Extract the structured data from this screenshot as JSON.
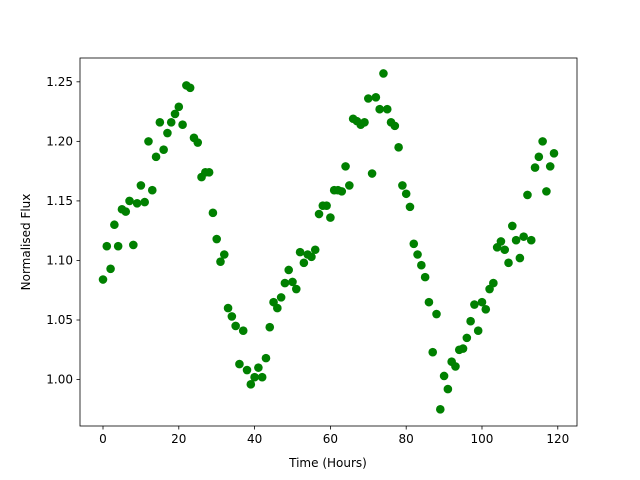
{
  "chart_data": {
    "type": "scatter",
    "x_label": "Time (Hours)",
    "y_label": "Normalised Flux",
    "color": "#008000",
    "x": [
      0,
      1,
      2,
      3,
      4,
      5,
      6,
      7,
      8,
      9,
      10,
      11,
      12,
      13,
      14,
      15,
      16,
      17,
      18,
      19,
      20,
      21,
      22,
      23,
      24,
      25,
      26,
      27,
      28,
      29,
      30,
      31,
      32,
      33,
      34,
      35,
      36,
      37,
      38,
      39,
      40,
      41,
      42,
      43,
      44,
      45,
      46,
      47,
      48,
      49,
      50,
      51,
      52,
      53,
      54,
      55,
      56,
      57,
      58,
      59,
      60,
      61,
      62,
      63,
      64,
      65,
      66,
      67,
      68,
      69,
      70,
      71,
      72,
      73,
      74,
      75,
      76,
      77,
      78,
      79,
      80,
      81,
      82,
      83,
      84,
      85,
      86,
      87,
      88,
      89,
      90,
      91,
      92,
      93,
      94,
      95,
      96,
      97,
      98,
      99,
      100,
      101,
      102,
      103,
      104,
      105,
      106,
      107,
      108,
      109,
      110,
      111,
      112,
      113,
      114,
      115,
      116,
      117,
      118,
      119
    ],
    "values": [
      1.084,
      1.112,
      1.093,
      1.13,
      1.112,
      1.143,
      1.141,
      1.15,
      1.113,
      1.148,
      1.163,
      1.149,
      1.2,
      1.159,
      1.187,
      1.216,
      1.193,
      1.207,
      1.216,
      1.223,
      1.229,
      1.214,
      1.247,
      1.245,
      1.203,
      1.199,
      1.17,
      1.174,
      1.174,
      1.14,
      1.118,
      1.099,
      1.105,
      1.06,
      1.053,
      1.045,
      1.013,
      1.041,
      1.008,
      0.996,
      1.002,
      1.01,
      1.002,
      1.018,
      1.044,
      1.065,
      1.06,
      1.069,
      1.081,
      1.092,
      1.082,
      1.076,
      1.107,
      1.098,
      1.105,
      1.103,
      1.109,
      1.139,
      1.146,
      1.146,
      1.136,
      1.159,
      1.159,
      1.158,
      1.179,
      1.163,
      1.219,
      1.217,
      1.214,
      1.216,
      1.236,
      1.173,
      1.237,
      1.227,
      1.257,
      1.227,
      1.216,
      1.213,
      1.195,
      1.163,
      1.156,
      1.145,
      1.114,
      1.105,
      1.096,
      1.086,
      1.065,
      1.023,
      1.055,
      0.975,
      1.003,
      0.992,
      1.015,
      1.011,
      1.025,
      1.026,
      1.035,
      1.049,
      1.063,
      1.041,
      1.065,
      1.059,
      1.076,
      1.081,
      1.111,
      1.116,
      1.109,
      1.098,
      1.129,
      1.117,
      1.102,
      1.12,
      1.155,
      1.117,
      1.178,
      1.187,
      1.2,
      1.158,
      1.179,
      1.19
    ],
    "xlim": [
      -6.07,
      125.07
    ],
    "ylim": [
      0.961,
      1.27
    ],
    "xticks": [
      0,
      20,
      40,
      60,
      80,
      100,
      120
    ],
    "yticks": [
      {
        "value": 1.0,
        "label": "1.00"
      },
      {
        "value": 1.05,
        "label": "1.05"
      },
      {
        "value": 1.1,
        "label": "1.10"
      },
      {
        "value": 1.15,
        "label": "1.15"
      },
      {
        "value": 1.2,
        "label": "1.20"
      },
      {
        "value": 1.25,
        "label": "1.25"
      }
    ]
  }
}
